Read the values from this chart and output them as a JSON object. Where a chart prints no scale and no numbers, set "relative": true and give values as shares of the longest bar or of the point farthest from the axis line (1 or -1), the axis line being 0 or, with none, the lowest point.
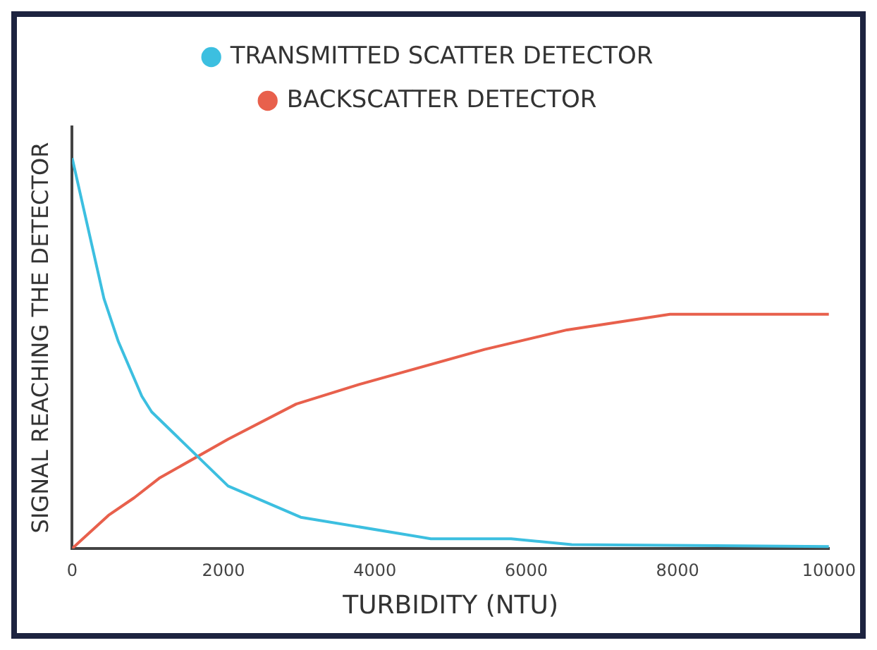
{
  "chart_data": {
    "type": "line",
    "relative": true,
    "xlabel": "TURBIDITY (NTU)",
    "ylabel": "SIGNAL REACHING THE DETECTOR",
    "xlim": [
      0,
      10000
    ],
    "xticks": [
      0,
      2000,
      4000,
      6000,
      8000,
      10000
    ],
    "legend": "top",
    "marker": "none",
    "line_style": "solid",
    "grid": false,
    "series": [
      {
        "name": "TRANSMITTED SCATTER DETECTOR",
        "color": "#3cbfe0",
        "x": [
          0,
          420,
          610,
          920,
          1050,
          2060,
          3020,
          4740,
          5800,
          6600,
          10000
        ],
        "values": [
          1,
          0.64,
          0.53,
          0.39,
          0.35,
          0.16,
          0.08,
          0.025,
          0.025,
          0.01,
          0.005
        ]
      },
      {
        "name": "BACKSCATTER DETECTOR",
        "color": "#e8604c",
        "x": [
          0,
          480,
          820,
          1150,
          2060,
          2960,
          3790,
          5450,
          6540,
          7900,
          10000
        ],
        "values": [
          0,
          0.085,
          0.13,
          0.18,
          0.28,
          0.37,
          0.42,
          0.51,
          0.56,
          0.6,
          0.6
        ]
      }
    ]
  }
}
